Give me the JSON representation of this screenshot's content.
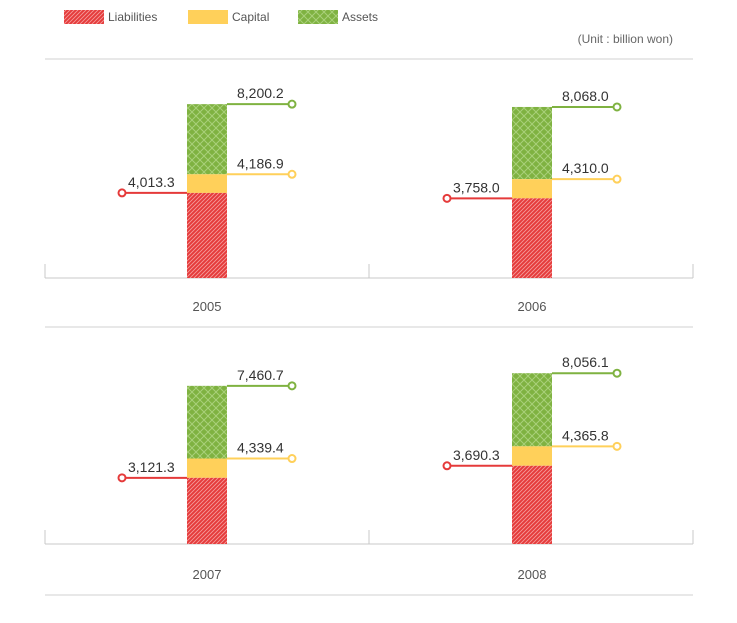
{
  "legend": [
    {
      "key": "liabilities",
      "label": "Liabilities",
      "color": "#e53a3a"
    },
    {
      "key": "capital",
      "label": "Capital",
      "color": "#ffd05a"
    },
    {
      "key": "assets",
      "label": "Assets",
      "color": "#7fb241"
    }
  ],
  "unit_label": "(Unit : billion won)",
  "chart_data": {
    "type": "bar",
    "stacked": true,
    "categories": [
      "2005",
      "2006",
      "2007",
      "2008"
    ],
    "series": [
      {
        "name": "Liabilities",
        "values": [
          4013.3,
          3758.0,
          3121.3,
          3690.3
        ]
      },
      {
        "name": "Capital",
        "values": [
          4186.9,
          4310.0,
          4339.4,
          4365.8
        ]
      },
      {
        "name": "Assets",
        "values": [
          8200.2,
          8068.0,
          7460.7,
          8056.1
        ]
      }
    ],
    "data_labels": {
      "liabilities": [
        "4,013.3",
        "3,758.0",
        "3,121.3",
        "3,690.3"
      ],
      "capital": [
        "4,186.9",
        "4,310.0",
        "4,339.4",
        "4,365.8"
      ],
      "assets": [
        "8,200.2",
        "8,068.0",
        "7,460.7",
        "8,056.1"
      ]
    },
    "legend_position": "top-left"
  }
}
